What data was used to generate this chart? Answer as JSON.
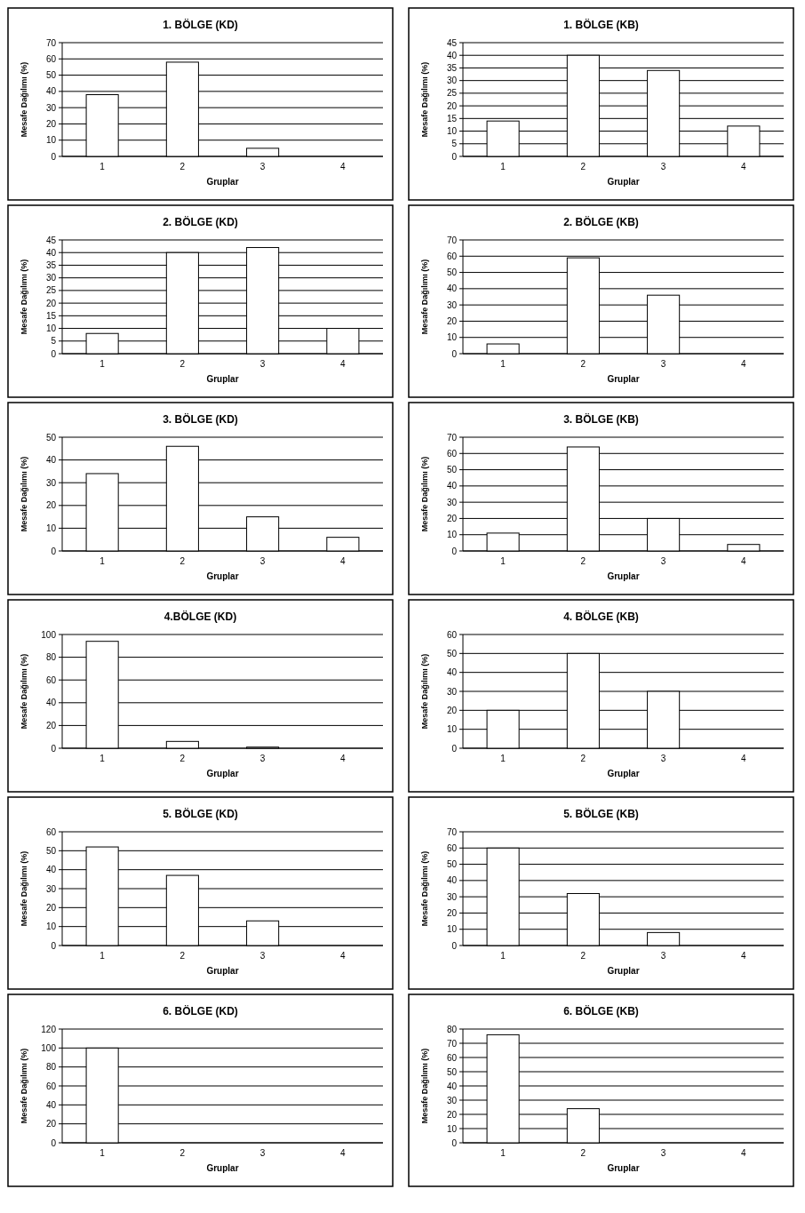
{
  "chart_data": [
    {
      "type": "bar",
      "title": "1. BÖLGE (KD)",
      "xlabel": "Gruplar",
      "ylabel": "Mesafe Dağılımı (%)",
      "categories": [
        "1",
        "2",
        "3",
        "4"
      ],
      "values": [
        38,
        58,
        5,
        0
      ],
      "color": "#ffffff",
      "ylim": [
        0,
        70
      ],
      "yticks": [
        0,
        10,
        20,
        30,
        40,
        50,
        60,
        70
      ],
      "grid": "y"
    },
    {
      "type": "bar",
      "title": "1. BÖLGE (KB)",
      "xlabel": "Gruplar",
      "ylabel": "Mesafe Dağılımı (%)",
      "categories": [
        "1",
        "2",
        "3",
        "4"
      ],
      "values": [
        14,
        40,
        34,
        12
      ],
      "color": "#ffffff",
      "ylim": [
        0,
        45
      ],
      "yticks": [
        0,
        5,
        10,
        15,
        20,
        25,
        30,
        35,
        40,
        45
      ],
      "grid": "y"
    },
    {
      "type": "bar",
      "title": "2. BÖLGE (KD)",
      "xlabel": "Gruplar",
      "ylabel": "Mesafe Dağılımı (%)",
      "categories": [
        "1",
        "2",
        "3",
        "4"
      ],
      "values": [
        8,
        40,
        42,
        10
      ],
      "color": "#ffffff",
      "ylim": [
        0,
        45
      ],
      "yticks": [
        0,
        5,
        10,
        15,
        20,
        25,
        30,
        35,
        40,
        45
      ],
      "grid": "y"
    },
    {
      "type": "bar",
      "title": "2. BÖLGE (KB)",
      "xlabel": "Gruplar",
      "ylabel": "Mesafe Dağılımı (%)",
      "categories": [
        "1",
        "2",
        "3",
        "4"
      ],
      "values": [
        6,
        59,
        36,
        0
      ],
      "color": "#ffffff",
      "ylim": [
        0,
        70
      ],
      "yticks": [
        0,
        10,
        20,
        30,
        40,
        50,
        60,
        70
      ],
      "grid": "y"
    },
    {
      "type": "bar",
      "title": "3. BÖLGE (KD)",
      "xlabel": "Gruplar",
      "ylabel": "Mesafe Dağılımı (%)",
      "categories": [
        "1",
        "2",
        "3",
        "4"
      ],
      "values": [
        34,
        46,
        15,
        6
      ],
      "color": "#ffffff",
      "ylim": [
        0,
        50
      ],
      "yticks": [
        0,
        10,
        20,
        30,
        40,
        50
      ],
      "grid": "y"
    },
    {
      "type": "bar",
      "title": "3. BÖLGE (KB)",
      "xlabel": "Gruplar",
      "ylabel": "Mesafe Dağılımı (%)",
      "categories": [
        "1",
        "2",
        "3",
        "4"
      ],
      "values": [
        11,
        64,
        20,
        4
      ],
      "color": "#ffffff",
      "ylim": [
        0,
        70
      ],
      "yticks": [
        0,
        10,
        20,
        30,
        40,
        50,
        60,
        70
      ],
      "grid": "y"
    },
    {
      "type": "bar",
      "title": "4.BÖLGE (KD)",
      "xlabel": "Gruplar",
      "ylabel": "Mesafe Dağılımı (%)",
      "categories": [
        "1",
        "2",
        "3",
        "4"
      ],
      "values": [
        94,
        6,
        1,
        0
      ],
      "color": "#ffffff",
      "ylim": [
        0,
        100
      ],
      "yticks": [
        0,
        20,
        40,
        60,
        80,
        100
      ],
      "grid": "y"
    },
    {
      "type": "bar",
      "title": "4. BÖLGE (KB)",
      "xlabel": "Gruplar",
      "ylabel": "Mesafe Dağılımı (%)",
      "categories": [
        "1",
        "2",
        "3",
        "4"
      ],
      "values": [
        20,
        50,
        30,
        0
      ],
      "color": "#ffffff",
      "ylim": [
        0,
        60
      ],
      "yticks": [
        0,
        10,
        20,
        30,
        40,
        50,
        60
      ],
      "grid": "y"
    },
    {
      "type": "bar",
      "title": "5. BÖLGE (KD)",
      "xlabel": "Gruplar",
      "ylabel": "Mesafe Dağılımı (%)",
      "categories": [
        "1",
        "2",
        "3",
        "4"
      ],
      "values": [
        52,
        37,
        13,
        0
      ],
      "color": "#ffffff",
      "ylim": [
        0,
        60
      ],
      "yticks": [
        0,
        10,
        20,
        30,
        40,
        50,
        60
      ],
      "grid": "y"
    },
    {
      "type": "bar",
      "title": "5. BÖLGE (KB)",
      "xlabel": "Gruplar",
      "ylabel": "Mesafe Dağılımı (%)",
      "categories": [
        "1",
        "2",
        "3",
        "4"
      ],
      "values": [
        60,
        32,
        8,
        0
      ],
      "color": "#ffffff",
      "ylim": [
        0,
        70
      ],
      "yticks": [
        0,
        10,
        20,
        30,
        40,
        50,
        60,
        70
      ],
      "grid": "y"
    },
    {
      "type": "bar",
      "title": "6. BÖLGE (KD)",
      "xlabel": "Gruplar",
      "ylabel": "Mesafe Dağılımı (%)",
      "categories": [
        "1",
        "2",
        "3",
        "4"
      ],
      "values": [
        100,
        0,
        0,
        0
      ],
      "color": "#ffffff",
      "ylim": [
        0,
        120
      ],
      "yticks": [
        0,
        20,
        40,
        60,
        80,
        100,
        120
      ],
      "grid": "y"
    },
    {
      "type": "bar",
      "title": "6. BÖLGE (KB)",
      "xlabel": "Gruplar",
      "ylabel": "Mesafe Dağılımı (%)",
      "categories": [
        "1",
        "2",
        "3",
        "4"
      ],
      "values": [
        76,
        24,
        0,
        0
      ],
      "color": "#ffffff",
      "ylim": [
        0,
        80
      ],
      "yticks": [
        0,
        10,
        20,
        30,
        40,
        50,
        60,
        70,
        80
      ],
      "grid": "y"
    }
  ]
}
